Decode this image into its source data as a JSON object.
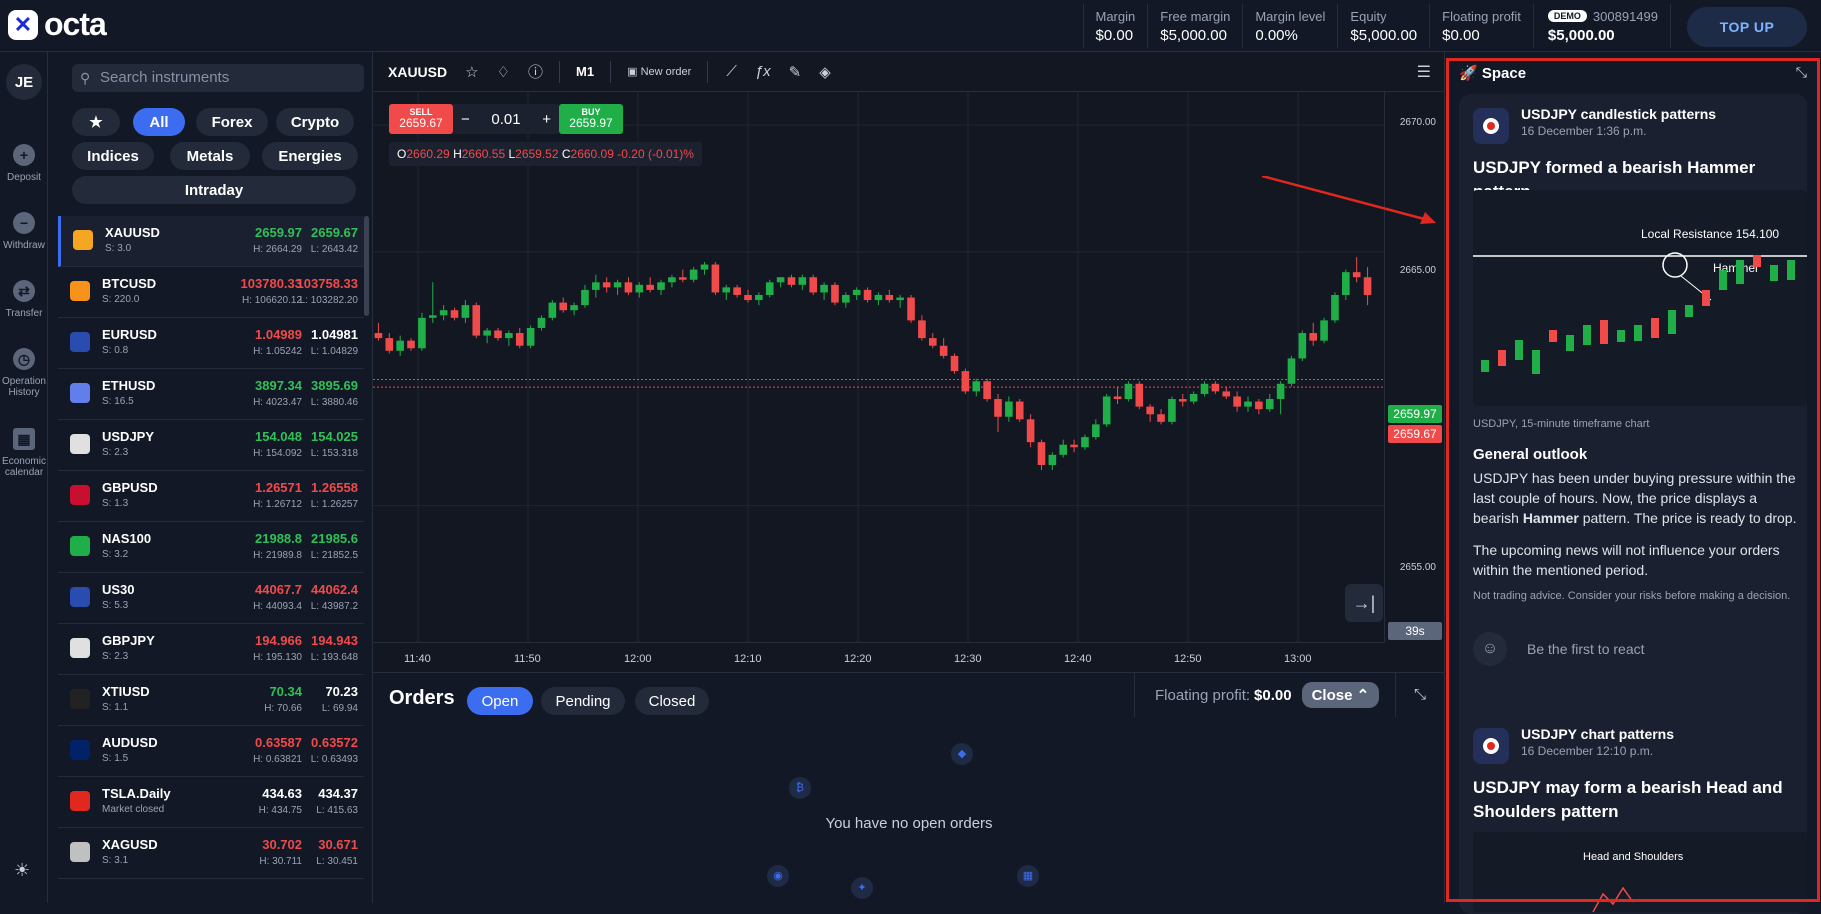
{
  "brand": {
    "name": "octa"
  },
  "account": {
    "stats": [
      {
        "label": "Margin",
        "value": "$0.00"
      },
      {
        "label": "Free margin",
        "value": "$5,000.00"
      },
      {
        "label": "Margin level",
        "value": "0.00%"
      },
      {
        "label": "Equity",
        "value": "$5,000.00"
      },
      {
        "label": "Floating profit",
        "value": "$0.00"
      }
    ],
    "badge": "DEMO",
    "number": "300891499",
    "balance": "$5,000.00",
    "topup_label": "TOP UP"
  },
  "leftnav": {
    "avatar": "JE",
    "items": [
      {
        "label": "Deposit",
        "icon": "plus-icon"
      },
      {
        "label": "Withdraw",
        "icon": "minus-icon"
      },
      {
        "label": "Transfer",
        "icon": "transfer-icon"
      },
      {
        "label": "Operation History",
        "icon": "clock-icon"
      },
      {
        "label": "Economic calendar",
        "icon": "calendar-icon"
      }
    ]
  },
  "instruments": {
    "search_placeholder": "Search instruments",
    "filters": [
      "★",
      "All",
      "Forex",
      "Crypto",
      "Indices",
      "Metals",
      "Energies",
      "Intraday"
    ],
    "active_filter": "All",
    "rows": [
      {
        "symbol": "XAUUSD",
        "spread": "S: 3.0",
        "bid": "2659.97",
        "ask": "2659.67",
        "high": "H: 2664.29",
        "low": "L: 2643.42",
        "bid_dir": "up",
        "ask_dir": "up",
        "color": "#f6a623"
      },
      {
        "symbol": "BTCUSD",
        "spread": "S: 220.0",
        "bid": "103780.33",
        "ask": "103758.33",
        "high": "H: 106620.12",
        "low": "L: 103282.20",
        "bid_dir": "dn",
        "ask_dir": "dn",
        "color": "#f7931a"
      },
      {
        "symbol": "EURUSD",
        "spread": "S: 0.8",
        "bid": "1.04989",
        "ask": "1.04981",
        "high": "H: 1.05242",
        "low": "L: 1.04829",
        "bid_dir": "dn",
        "ask_dir": "wt",
        "color": "#2a4bb0"
      },
      {
        "symbol": "ETHUSD",
        "spread": "S: 16.5",
        "bid": "3897.34",
        "ask": "3895.69",
        "high": "H: 4023.47",
        "low": "L: 3880.46",
        "bid_dir": "up",
        "ask_dir": "up",
        "color": "#627eea"
      },
      {
        "symbol": "USDJPY",
        "spread": "S: 2.3",
        "bid": "154.048",
        "ask": "154.025",
        "high": "H: 154.092",
        "low": "L: 153.318",
        "bid_dir": "up",
        "ask_dir": "up",
        "color": "#e0e0e0"
      },
      {
        "symbol": "GBPUSD",
        "spread": "S: 1.3",
        "bid": "1.26571",
        "ask": "1.26558",
        "high": "H: 1.26712",
        "low": "L: 1.26257",
        "bid_dir": "dn",
        "ask_dir": "dn",
        "color": "#c8102e"
      },
      {
        "symbol": "NAS100",
        "spread": "S: 3.2",
        "bid": "21988.8",
        "ask": "21985.6",
        "high": "H: 21989.8",
        "low": "L: 21852.5",
        "bid_dir": "up",
        "ask_dir": "up",
        "color": "#1fae48"
      },
      {
        "symbol": "US30",
        "spread": "S: 5.3",
        "bid": "44067.7",
        "ask": "44062.4",
        "high": "H: 44093.4",
        "low": "L: 43987.2",
        "bid_dir": "dn",
        "ask_dir": "dn",
        "color": "#2a4bb0"
      },
      {
        "symbol": "GBPJPY",
        "spread": "S: 2.3",
        "bid": "194.966",
        "ask": "194.943",
        "high": "H: 195.130",
        "low": "L: 193.648",
        "bid_dir": "dn",
        "ask_dir": "dn",
        "color": "#e0e0e0"
      },
      {
        "symbol": "XTIUSD",
        "spread": "S: 1.1",
        "bid": "70.34",
        "ask": "70.23",
        "high": "H: 70.66",
        "low": "L: 69.94",
        "bid_dir": "up",
        "ask_dir": "wt",
        "color": "#222222"
      },
      {
        "symbol": "AUDUSD",
        "spread": "S: 1.5",
        "bid": "0.63587",
        "ask": "0.63572",
        "high": "H: 0.63821",
        "low": "L: 0.63493",
        "bid_dir": "dn",
        "ask_dir": "dn",
        "color": "#012169"
      },
      {
        "symbol": "TSLA.Daily",
        "spread": "Market closed",
        "bid": "434.63",
        "ask": "434.37",
        "high": "H: 434.75",
        "low": "L: 415.63",
        "bid_dir": "wt",
        "ask_dir": "wt",
        "color": "#e0281e"
      },
      {
        "symbol": "XAGUSD",
        "spread": "S: 3.1",
        "bid": "30.702",
        "ask": "30.671",
        "high": "H: 30.711",
        "low": "L: 30.451",
        "bid_dir": "dn",
        "ask_dir": "dn",
        "color": "#c0c0c0"
      }
    ]
  },
  "chart": {
    "symbol": "XAUUSD",
    "timeframe": "M1",
    "new_order_label": "New order",
    "sell_label": "SELL",
    "sell_price": "2659.67",
    "buy_label": "BUY",
    "buy_price": "2659.97",
    "lot": "0.01",
    "ohlc": {
      "o": "2660.29",
      "h": "2660.55",
      "l": "2659.52",
      "c": "2660.09",
      "change": "-0.20 (-0.01)%"
    },
    "price_ticks": [
      "2670.00",
      "2665.00",
      "2655.00"
    ],
    "ask_tag": "2659.97",
    "bid_tag": "2659.67",
    "timer": "39s",
    "time_ticks": [
      "11:40",
      "11:50",
      "12:00",
      "12:10",
      "12:20",
      "12:30",
      "12:40",
      "12:50",
      "13:00"
    ]
  },
  "chart_data": {
    "type": "candlestick",
    "ylim": [
      2651.2,
      2671.3
    ],
    "price_ticks": [
      2670,
      2665,
      2655
    ],
    "time_ticks": [
      "11:40",
      "11:50",
      "12:00",
      "12:10",
      "12:20",
      "12:30",
      "12:40",
      "12:50",
      "13:00"
    ],
    "candles": [
      [
        2661.8,
        2662.2,
        2661.5,
        2661.6
      ],
      [
        2661.6,
        2661.8,
        2661.0,
        2661.1
      ],
      [
        2661.1,
        2661.7,
        2660.9,
        2661.5
      ],
      [
        2661.5,
        2661.6,
        2661.1,
        2661.2
      ],
      [
        2661.2,
        2662.6,
        2661.1,
        2662.4
      ],
      [
        2662.4,
        2663.8,
        2662.2,
        2662.5
      ],
      [
        2662.5,
        2662.9,
        2662.3,
        2662.7
      ],
      [
        2662.7,
        2662.8,
        2662.3,
        2662.4
      ],
      [
        2662.4,
        2663.1,
        2662.2,
        2662.9
      ],
      [
        2662.9,
        2663.0,
        2661.6,
        2661.7
      ],
      [
        2661.7,
        2662.0,
        2661.4,
        2661.9
      ],
      [
        2661.9,
        2662.0,
        2661.5,
        2661.6
      ],
      [
        2661.6,
        2661.9,
        2661.3,
        2661.8
      ],
      [
        2661.8,
        2662.0,
        2661.2,
        2661.3
      ],
      [
        2661.3,
        2662.1,
        2661.2,
        2662.0
      ],
      [
        2662.0,
        2662.5,
        2661.9,
        2662.4
      ],
      [
        2662.4,
        2663.1,
        2662.3,
        2663.0
      ],
      [
        2663.0,
        2663.2,
        2662.6,
        2662.7
      ],
      [
        2662.7,
        2663.0,
        2662.5,
        2662.9
      ],
      [
        2662.9,
        2663.7,
        2662.8,
        2663.5
      ],
      [
        2663.5,
        2664.1,
        2663.2,
        2663.8
      ],
      [
        2663.8,
        2664.0,
        2663.4,
        2663.6
      ],
      [
        2663.6,
        2663.9,
        2663.3,
        2663.8
      ],
      [
        2663.8,
        2664.0,
        2663.3,
        2663.4
      ],
      [
        2663.4,
        2663.8,
        2663.2,
        2663.7
      ],
      [
        2663.7,
        2664.0,
        2663.4,
        2663.5
      ],
      [
        2663.5,
        2663.9,
        2663.3,
        2663.8
      ],
      [
        2663.8,
        2664.1,
        2663.6,
        2664.0
      ],
      [
        2664.0,
        2664.3,
        2663.8,
        2663.9
      ],
      [
        2663.9,
        2664.4,
        2663.8,
        2664.3
      ],
      [
        2664.3,
        2664.6,
        2664.1,
        2664.5
      ],
      [
        2664.5,
        2664.6,
        2663.3,
        2663.4
      ],
      [
        2663.4,
        2663.7,
        2663.1,
        2663.6
      ],
      [
        2663.6,
        2663.7,
        2663.2,
        2663.3
      ],
      [
        2663.3,
        2663.5,
        2663.0,
        2663.1
      ],
      [
        2663.1,
        2663.4,
        2662.9,
        2663.3
      ],
      [
        2663.3,
        2663.9,
        2663.2,
        2663.8
      ],
      [
        2663.8,
        2664.0,
        2663.6,
        2664.0
      ],
      [
        2664.0,
        2664.1,
        2663.6,
        2663.7
      ],
      [
        2663.7,
        2664.1,
        2663.5,
        2664.0
      ],
      [
        2664.0,
        2664.1,
        2663.3,
        2663.4
      ],
      [
        2663.4,
        2663.8,
        2663.1,
        2663.7
      ],
      [
        2663.7,
        2663.8,
        2662.9,
        2663.0
      ],
      [
        2663.0,
        2663.4,
        2662.8,
        2663.3
      ],
      [
        2663.3,
        2663.6,
        2663.1,
        2663.5
      ],
      [
        2663.5,
        2663.6,
        2663.0,
        2663.1
      ],
      [
        2663.1,
        2663.4,
        2662.9,
        2663.3
      ],
      [
        2663.3,
        2663.5,
        2663.0,
        2663.1
      ],
      [
        2663.1,
        2663.3,
        2662.8,
        2663.2
      ],
      [
        2663.2,
        2663.3,
        2662.2,
        2662.3
      ],
      [
        2662.3,
        2662.5,
        2661.5,
        2661.6
      ],
      [
        2661.6,
        2661.8,
        2661.2,
        2661.3
      ],
      [
        2661.3,
        2661.6,
        2660.8,
        2660.9
      ],
      [
        2660.9,
        2661.0,
        2660.2,
        2660.3
      ],
      [
        2660.3,
        2660.4,
        2659.4,
        2659.5
      ],
      [
        2659.5,
        2660.0,
        2659.3,
        2659.9
      ],
      [
        2659.9,
        2660.0,
        2659.1,
        2659.2
      ],
      [
        2659.2,
        2659.4,
        2657.9,
        2658.5
      ],
      [
        2658.5,
        2659.3,
        2658.3,
        2659.1
      ],
      [
        2659.1,
        2659.2,
        2658.3,
        2658.4
      ],
      [
        2658.4,
        2658.6,
        2657.3,
        2657.5
      ],
      [
        2657.5,
        2657.6,
        2656.4,
        2656.6
      ],
      [
        2656.6,
        2657.1,
        2656.4,
        2657.0
      ],
      [
        2657.0,
        2657.6,
        2656.9,
        2657.4
      ],
      [
        2657.4,
        2657.6,
        2657.1,
        2657.3
      ],
      [
        2657.3,
        2657.8,
        2657.2,
        2657.7
      ],
      [
        2657.7,
        2658.4,
        2657.6,
        2658.2
      ],
      [
        2658.2,
        2659.4,
        2658.1,
        2659.3
      ],
      [
        2659.3,
        2659.7,
        2659.0,
        2659.2
      ],
      [
        2659.2,
        2659.9,
        2659.1,
        2659.8
      ],
      [
        2659.8,
        2659.9,
        2658.8,
        2658.9
      ],
      [
        2658.9,
        2659.0,
        2658.3,
        2658.6
      ],
      [
        2658.6,
        2658.8,
        2658.2,
        2658.3
      ],
      [
        2658.3,
        2659.3,
        2658.2,
        2659.2
      ],
      [
        2659.2,
        2659.4,
        2658.9,
        2659.1
      ],
      [
        2659.1,
        2659.5,
        2659.0,
        2659.4
      ],
      [
        2659.4,
        2659.9,
        2659.3,
        2659.8
      ],
      [
        2659.8,
        2659.9,
        2659.4,
        2659.5
      ],
      [
        2659.5,
        2659.7,
        2659.2,
        2659.3
      ],
      [
        2659.3,
        2659.5,
        2658.7,
        2658.9
      ],
      [
        2658.9,
        2659.3,
        2658.7,
        2659.1
      ],
      [
        2659.1,
        2659.2,
        2658.6,
        2658.8
      ],
      [
        2658.8,
        2659.4,
        2658.7,
        2659.2
      ],
      [
        2659.2,
        2659.9,
        2658.6,
        2659.8
      ],
      [
        2659.8,
        2660.9,
        2659.7,
        2660.8
      ],
      [
        2660.8,
        2661.9,
        2660.7,
        2661.8
      ],
      [
        2661.8,
        2662.2,
        2661.3,
        2661.5
      ],
      [
        2661.5,
        2662.4,
        2661.4,
        2662.3
      ],
      [
        2662.3,
        2663.4,
        2662.2,
        2663.3
      ],
      [
        2663.3,
        2664.3,
        2663.1,
        2664.2
      ],
      [
        2664.2,
        2664.8,
        2663.8,
        2664.0
      ],
      [
        2664.0,
        2664.4,
        2662.9,
        2663.3
      ]
    ]
  },
  "orders": {
    "title": "Orders",
    "tabs": [
      "Open",
      "Pending",
      "Closed"
    ],
    "active_tab": "Open",
    "floating_label": "Floating profit:",
    "floating_value": "$0.00",
    "close_label": "Close",
    "empty_text": "You have no open orders"
  },
  "space": {
    "title": "Space",
    "cards": [
      {
        "author": "USDJPY candlestick patterns",
        "date": "16 December 1:36 p.m.",
        "title": "USDJPY formed a bearish Hammer pattern",
        "image_labels": {
          "resistance": "Local Resistance 154.100",
          "pattern": "Hammer"
        },
        "caption": "USDJPY, 15-minute timeframe chart",
        "heading": "General outlook",
        "para1_a": "USDJPY has been under buying pressure within the last couple of hours. Now, the price displays a bearish ",
        "para1_b": "Hammer",
        "para1_c": " pattern. The price is ready to drop.",
        "para2": "The upcoming news will not influence your orders within the mentioned period.",
        "note": "Not trading advice. Consider your risks before making a decision.",
        "react": "Be the first to react"
      },
      {
        "author": "USDJPY chart patterns",
        "date": "16 December 12:10 p.m.",
        "title": "USDJPY may form a bearish Head and Shoulders pattern",
        "image_label": "Head and Shoulders"
      }
    ]
  }
}
